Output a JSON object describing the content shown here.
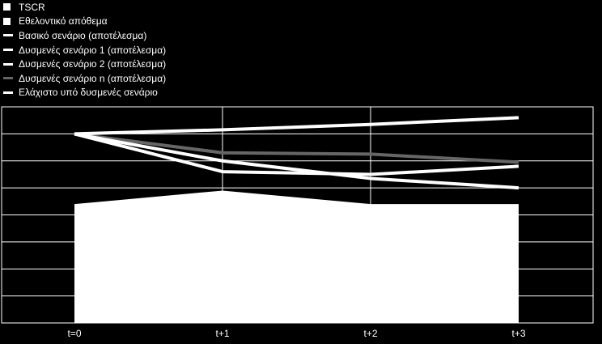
{
  "chart_data": {
    "type": "line",
    "categories": [
      "t=0",
      "t+1",
      "t+2",
      "t+3"
    ],
    "ylim": [
      0,
      8
    ],
    "grid": true,
    "legend_position": "top-left",
    "series": [
      {
        "name": "TSCR",
        "kind": "area",
        "color": "#ffffff",
        "values": [
          0,
          0,
          0,
          0
        ]
      },
      {
        "name": "Εθελοντικό απόθεμα",
        "kind": "area",
        "color": "#ffffff",
        "values": [
          4.4,
          4.9,
          4.4,
          4.4
        ]
      },
      {
        "name": "Βασικό σενάριο (αποτέλεσμα)",
        "kind": "line",
        "color": "#ffffff",
        "values": [
          7.0,
          7.15,
          7.35,
          7.6
        ]
      },
      {
        "name": "Δυσμενές σενάριο 1 (αποτέλεσμα)",
        "kind": "line",
        "color": "#ffffff",
        "values": [
          7.0,
          5.6,
          5.5,
          5.8
        ]
      },
      {
        "name": "Δυσμενές σενάριο 2 (αποτέλεσμα)",
        "kind": "line",
        "color": "#ffffff",
        "values": [
          7.0,
          6.0,
          5.35,
          5.0
        ]
      },
      {
        "name": "Δυσμενές σενάριο n (αποτέλεσμα)",
        "kind": "line",
        "color": "#666666",
        "values": [
          7.0,
          6.3,
          6.25,
          5.95
        ]
      },
      {
        "name": "Ελάχιστο υπό δυσμενές σενάριο",
        "kind": "line",
        "color": "#ffffff",
        "values": [
          null,
          null,
          null,
          null
        ]
      }
    ]
  }
}
